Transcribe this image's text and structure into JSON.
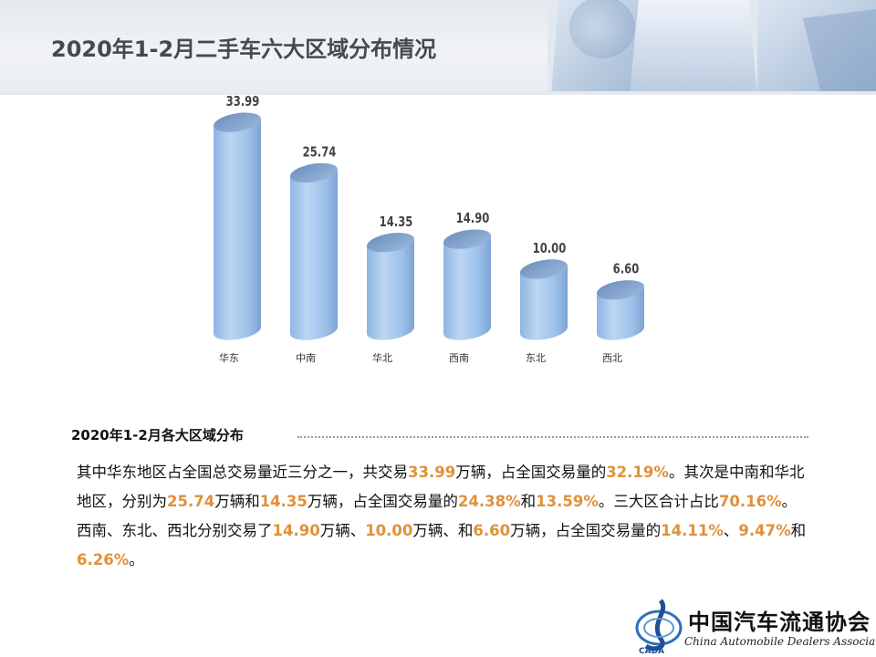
{
  "page": {
    "title": "2020年1-2月二手车六大区域分布情况"
  },
  "chart_data": {
    "type": "bar",
    "categories": [
      "华东",
      "中南",
      "华北",
      "西南",
      "东北",
      "西北"
    ],
    "values": [
      33.99,
      25.74,
      14.35,
      14.9,
      10.0,
      6.6
    ],
    "value_labels": [
      "33.99",
      "25.74",
      "14.35",
      "14.90",
      "10.00",
      "6.60"
    ],
    "ylim": [
      0,
      40
    ],
    "grid": false,
    "legend": "none",
    "bar_color": "#9dc3ec",
    "bar_top_color": "#7a9cc6"
  },
  "section": {
    "heading": "2020年1-2月各大区域分布",
    "summary": [
      {
        "t": "其中华东地区占全国总交易量近三分之一，共交易",
        "hl": false
      },
      {
        "t": "33.99",
        "hl": true
      },
      {
        "t": "万辆，占全国交易量的",
        "hl": false
      },
      {
        "t": "32.19%",
        "hl": true
      },
      {
        "t": "。其次是中南和华北地区，分别为",
        "hl": false
      },
      {
        "t": "25.74",
        "hl": true
      },
      {
        "t": "万辆和",
        "hl": false
      },
      {
        "t": "14.35",
        "hl": true
      },
      {
        "t": "万辆，占全国交易量的",
        "hl": false
      },
      {
        "t": "24.38%",
        "hl": true
      },
      {
        "t": "和",
        "hl": false
      },
      {
        "t": "13.59%",
        "hl": true
      },
      {
        "t": "。三大区合计占比",
        "hl": false
      },
      {
        "t": "70.16%",
        "hl": true
      },
      {
        "t": "。西南、东北、西北分别交易了",
        "hl": false
      },
      {
        "t": "14.90",
        "hl": true
      },
      {
        "t": "万辆、",
        "hl": false
      },
      {
        "t": "10.00",
        "hl": true
      },
      {
        "t": "万辆、和",
        "hl": false
      },
      {
        "t": "6.60",
        "hl": true
      },
      {
        "t": "万辆，占全国交易量的",
        "hl": false
      },
      {
        "t": "14.11%",
        "hl": true
      },
      {
        "t": "、",
        "hl": false
      },
      {
        "t": "9.47%",
        "hl": true
      },
      {
        "t": "和",
        "hl": false
      },
      {
        "t": "6.26%",
        "hl": true
      },
      {
        "t": "。",
        "hl": false
      }
    ],
    "highlight_color": "#e0913a"
  },
  "footer": {
    "org_cn": "中国汽车流通协会",
    "org_en": "China Automobile Dealers Association",
    "logo_text": "CADA"
  }
}
